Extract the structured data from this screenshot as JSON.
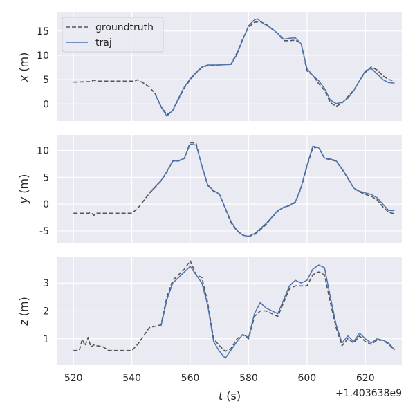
{
  "colors": {
    "axes_bg": "#EAEAF2",
    "grid": "#FFFFFF",
    "groundtruth": "#555555",
    "traj": "#4C72B0",
    "text": "#262626"
  },
  "chart_data": {
    "type": "line",
    "shared_x": {
      "label_var": "t",
      "label_unit": " (s)",
      "ticks": [
        520,
        540,
        560,
        580,
        600,
        620
      ],
      "xlim": [
        514.5,
        632.5
      ],
      "offset_label": "+1.403638e9"
    },
    "legend": {
      "placement": "top-left",
      "entries": [
        {
          "label": "groundtruth",
          "style": "dashed"
        },
        {
          "label": "traj",
          "style": "solid"
        }
      ]
    },
    "subplots": [
      {
        "ylabel_var": "x",
        "ylabel_unit": " (m)",
        "ylim": [
          -3.5,
          18.8
        ],
        "yticks": [
          0,
          5,
          10,
          15
        ],
        "series": [
          {
            "name": "groundtruth",
            "x": [
              520,
              526,
              527,
              528,
              530,
              534,
              538,
              541,
              542,
              544,
              546,
              548,
              550,
              552,
              554,
              556,
              558,
              560,
              562,
              564,
              566,
              570,
              574,
              576,
              578,
              580,
              582,
              584,
              586,
              588,
              590,
              592,
              594,
              596,
              598,
              600,
              602,
              604,
              606,
              608,
              610,
              612,
              614,
              616,
              618,
              620,
              622,
              624,
              626,
              628,
              630
            ],
            "y": [
              4.5,
              4.6,
              4.9,
              4.7,
              4.7,
              4.7,
              4.7,
              4.7,
              5.0,
              4.3,
              3.5,
              2.1,
              -0.5,
              -2.2,
              -1.4,
              1.0,
              3.3,
              5.0,
              6.4,
              7.5,
              7.9,
              8.0,
              8.2,
              10.5,
              13.4,
              15.8,
              16.8,
              16.9,
              16.4,
              15.4,
              14.5,
              13.0,
              13.0,
              13.1,
              12.5,
              6.8,
              5.9,
              4.2,
              2.8,
              0.3,
              -0.5,
              0.2,
              1.5,
              2.8,
              4.8,
              6.5,
              7.6,
              7.0,
              5.8,
              5.0,
              4.8
            ]
          },
          {
            "name": "traj",
            "x": [
              548,
              550,
              552,
              554,
              556,
              558,
              560,
              562,
              564,
              566,
              570,
              574,
              576,
              578,
              580,
              582,
              583,
              584,
              586,
              588,
              590,
              592,
              594,
              596,
              598,
              600,
              602,
              604,
              606,
              608,
              610,
              612,
              614,
              616,
              618,
              620,
              622,
              624,
              626,
              628,
              630
            ],
            "y": [
              2.0,
              -0.6,
              -2.5,
              -1.3,
              1.2,
              3.5,
              5.2,
              6.5,
              7.6,
              8.0,
              8.0,
              8.1,
              10.2,
              13.2,
              16.1,
              17.3,
              17.5,
              17.0,
              16.2,
              15.5,
              14.5,
              13.3,
              13.5,
              13.6,
              12.4,
              7.3,
              5.8,
              4.8,
              3.2,
              0.8,
              0.1,
              0.3,
              1.2,
              2.7,
              4.8,
              6.8,
              7.3,
              6.2,
              5.0,
              4.4,
              4.3
            ]
          }
        ]
      },
      {
        "ylabel_var": "y",
        "ylabel_unit": " (m)",
        "ylim": [
          -7.2,
          12.9
        ],
        "yticks": [
          -5,
          0,
          5,
          10
        ],
        "series": [
          {
            "name": "groundtruth",
            "x": [
              520,
              524,
              525,
              526,
              527,
              528,
              530,
              534,
              538,
              540,
              542,
              546,
              550,
              552,
              554,
              556,
              558,
              560,
              562,
              564,
              566,
              568,
              570,
              572,
              574,
              576,
              578,
              580,
              582,
              584,
              586,
              588,
              590,
              592,
              594,
              596,
              598,
              600,
              602,
              604,
              606,
              608,
              610,
              612,
              614,
              616,
              618,
              620,
              622,
              624,
              626,
              628,
              630
            ],
            "y": [
              -1.7,
              -1.7,
              -1.7,
              -1.6,
              -2.1,
              -1.7,
              -1.7,
              -1.7,
              -1.7,
              -1.7,
              -0.8,
              2.0,
              4.3,
              6.0,
              8.0,
              8.1,
              8.5,
              11.5,
              11.3,
              7.0,
              3.5,
              2.4,
              1.8,
              -0.8,
              -3.5,
              -5.0,
              -5.8,
              -6.0,
              -5.7,
              -4.8,
              -3.8,
              -2.5,
              -1.3,
              -0.6,
              -0.3,
              0.3,
              3.0,
              7.0,
              10.5,
              10.6,
              8.5,
              8.3,
              8.0,
              6.5,
              4.8,
              3.0,
              2.3,
              1.8,
              1.5,
              0.8,
              -0.5,
              -1.5,
              -1.8
            ]
          },
          {
            "name": "traj",
            "x": [
              546,
              550,
              552,
              554,
              556,
              558,
              560,
              562,
              564,
              566,
              568,
              570,
              572,
              574,
              576,
              578,
              580,
              582,
              584,
              586,
              588,
              590,
              592,
              594,
              596,
              598,
              600,
              602,
              604,
              606,
              608,
              610,
              612,
              614,
              616,
              618,
              620,
              622,
              624,
              626,
              628,
              630
            ],
            "y": [
              2.1,
              4.4,
              6.1,
              8.1,
              8.0,
              8.6,
              11.2,
              11.0,
              7.2,
              3.6,
              2.5,
              1.9,
              -0.7,
              -3.3,
              -4.9,
              -5.8,
              -6.0,
              -5.5,
              -4.6,
              -3.6,
              -2.4,
              -1.2,
              -0.6,
              -0.2,
              0.4,
              3.2,
              7.2,
              10.8,
              10.5,
              8.6,
              8.4,
              8.1,
              6.6,
              4.9,
              3.0,
              2.4,
              2.1,
              1.8,
              1.2,
              0.0,
              -1.2,
              -1.2
            ]
          }
        ]
      },
      {
        "ylabel_var": "z",
        "ylabel_unit": " (m)",
        "ylim": [
          0.05,
          3.95
        ],
        "yticks": [
          1,
          2,
          3
        ],
        "series": [
          {
            "name": "groundtruth",
            "x": [
              520,
              522,
              523,
              524,
              525,
              526,
              527,
              528,
              530,
              532,
              534,
              536,
              538,
              540,
              542,
              544,
              546,
              548,
              550,
              552,
              554,
              556,
              558,
              560,
              562,
              564,
              566,
              568,
              570,
              572,
              574,
              576,
              578,
              580,
              582,
              584,
              586,
              588,
              590,
              592,
              594,
              596,
              598,
              600,
              602,
              604,
              606,
              608,
              610,
              612,
              614,
              616,
              618,
              620,
              622,
              624,
              626,
              628,
              630
            ],
            "y": [
              0.58,
              0.58,
              0.98,
              0.75,
              1.05,
              0.7,
              0.78,
              0.75,
              0.72,
              0.58,
              0.58,
              0.58,
              0.58,
              0.58,
              0.8,
              1.1,
              1.4,
              1.45,
              1.5,
              2.5,
              3.1,
              3.3,
              3.5,
              3.8,
              3.3,
              3.2,
              2.3,
              1.0,
              0.75,
              0.55,
              0.65,
              1.0,
              1.15,
              1.0,
              1.8,
              2.0,
              2.0,
              1.9,
              1.8,
              2.3,
              2.8,
              2.9,
              2.9,
              2.9,
              3.3,
              3.4,
              3.3,
              2.3,
              1.4,
              0.75,
              1.0,
              0.85,
              1.1,
              0.9,
              0.8,
              0.95,
              0.95,
              0.8,
              0.6
            ]
          },
          {
            "name": "traj",
            "x": [
              550,
              552,
              554,
              556,
              558,
              560,
              562,
              564,
              566,
              568,
              570,
              572,
              574,
              576,
              578,
              580,
              582,
              584,
              586,
              588,
              590,
              592,
              594,
              596,
              598,
              600,
              602,
              604,
              606,
              608,
              610,
              612,
              614,
              616,
              618,
              620,
              622,
              624,
              626,
              628,
              630
            ],
            "y": [
              1.45,
              2.4,
              3.0,
              3.2,
              3.4,
              3.6,
              3.3,
              3.0,
              2.2,
              0.9,
              0.55,
              0.3,
              0.6,
              0.9,
              1.15,
              1.05,
              1.9,
              2.3,
              2.1,
              2.0,
              1.9,
              2.4,
              2.9,
              3.1,
              3.0,
              3.1,
              3.5,
              3.65,
              3.55,
              2.5,
              1.5,
              0.85,
              1.1,
              0.9,
              1.2,
              1.0,
              0.85,
              1.0,
              0.95,
              0.85,
              0.6
            ]
          }
        ]
      }
    ]
  }
}
